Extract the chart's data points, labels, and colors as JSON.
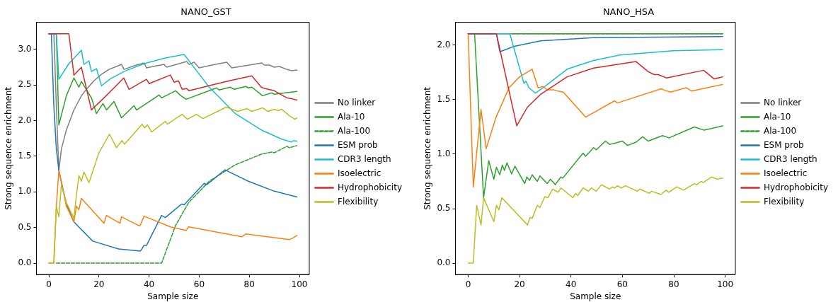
{
  "chart_data": [
    {
      "type": "line",
      "title": "NANO_GST",
      "xlabel": "Sample size",
      "ylabel": "Strong sequence enrichment",
      "xlim": [
        -4.95,
        103.95
      ],
      "xticks": [
        0,
        20,
        40,
        60,
        80,
        100
      ],
      "ylim": [
        -0.16,
        3.38
      ],
      "yticks": [
        {
          "value": 0,
          "label": "0.0"
        },
        {
          "value": 0.5,
          "label": "0.5"
        },
        {
          "value": 1,
          "label": "1.0"
        },
        {
          "value": 1.5,
          "label": "1.5"
        },
        {
          "value": 2,
          "label": "2.0"
        },
        {
          "value": 2.5,
          "label": "2.5"
        },
        {
          "value": 3,
          "label": "3.0"
        }
      ],
      "grid": false,
      "legend": "right",
      "marker": "none",
      "series": [
        {
          "name": "No linker",
          "color": "#7f7f7f",
          "x": [
            0,
            2,
            3,
            4,
            5,
            7,
            10,
            13,
            15,
            18,
            21,
            24,
            27,
            29,
            30,
            34,
            38,
            39,
            43,
            46,
            47,
            52,
            55,
            56,
            58,
            60,
            65,
            71,
            73,
            80,
            85,
            86,
            88,
            90,
            92,
            95,
            97,
            99
          ],
          "values": [
            3.22,
            3.22,
            2.2,
            1.3,
            1.6,
            1.87,
            2.15,
            2.35,
            2.44,
            2.56,
            2.65,
            2.72,
            2.76,
            2.79,
            2.72,
            2.77,
            2.81,
            2.74,
            2.77,
            2.79,
            2.75,
            2.8,
            2.83,
            2.79,
            2.82,
            2.74,
            2.78,
            2.82,
            2.74,
            2.78,
            2.81,
            2.78,
            2.78,
            2.75,
            2.76,
            2.72,
            2.7,
            2.71
          ]
        },
        {
          "name": "Ala-10",
          "color": "#2ca02c",
          "x": [
            0,
            3,
            4,
            7,
            10,
            12,
            13,
            17,
            19,
            21.6,
            23,
            26,
            29,
            34,
            35,
            44,
            45,
            50.6,
            52.7,
            54.8,
            67,
            68,
            72.4,
            74,
            78.6,
            79.6,
            81,
            85.3,
            89,
            90,
            99
          ],
          "values": [
            3.22,
            3.22,
            1.94,
            2.35,
            2.6,
            2.47,
            2.55,
            2.32,
            2.1,
            2.24,
            2.15,
            2.27,
            2.04,
            2.21,
            2.15,
            2.36,
            2.32,
            2.42,
            2.35,
            2.3,
            2.46,
            2.43,
            2.47,
            2.44,
            2.48,
            2.46,
            2.47,
            2.35,
            2.39,
            2.37,
            2.41
          ]
        },
        {
          "name": "Ala-100",
          "color": "#2ca02c",
          "line_style": "dashed",
          "x": [
            3,
            45,
            50.6,
            55.8,
            64,
            74.4,
            84.8,
            89,
            90,
            95,
            96,
            99
          ],
          "values": [
            0,
            0,
            0.53,
            0.85,
            1.15,
            1.38,
            1.53,
            1.56,
            1.55,
            1.64,
            1.62,
            1.65
          ]
        },
        {
          "name": "ESM prob",
          "color": "#1f77b4",
          "x": [
            0,
            1,
            2,
            3,
            4,
            7,
            10,
            17.5,
            27.8,
            36.6,
            38,
            39,
            44,
            45,
            46.5,
            53,
            54,
            62,
            63,
            70.3,
            79.6,
            90,
            99
          ],
          "values": [
            3.22,
            3.22,
            2.2,
            1.6,
            1.3,
            0.83,
            0.58,
            0.31,
            0.2,
            0.17,
            0.25,
            0.25,
            0.6,
            0.67,
            0.64,
            0.83,
            0.82,
            1.12,
            1.1,
            1.31,
            1.15,
            1.01,
            0.93
          ]
        },
        {
          "name": "CDR3 length",
          "color": "#17becf",
          "x": [
            0,
            3,
            4,
            8,
            13,
            14,
            16,
            17,
            19,
            21,
            24.7,
            30,
            38,
            46.5,
            54,
            59,
            64,
            74.4,
            84.8,
            93,
            96.7,
            97.7,
            99
          ],
          "values": [
            3.22,
            3.22,
            2.58,
            2.8,
            2.99,
            2.79,
            2.84,
            2.69,
            2.73,
            2.49,
            2.59,
            2.69,
            2.8,
            2.88,
            2.93,
            2.7,
            2.47,
            2.1,
            1.87,
            1.74,
            1.7,
            1.72,
            1.71
          ]
        },
        {
          "name": "Isoelectric",
          "color": "#ff7f0e",
          "x": [
            0,
            2,
            3,
            4,
            7,
            10,
            11,
            12,
            13,
            22,
            23,
            28.4,
            29,
            36.3,
            38,
            48.5,
            54.8,
            55.8,
            77,
            78.6,
            96,
            97.7,
            99
          ],
          "values": [
            0,
            0,
            0.81,
            1.3,
            0.8,
            0.58,
            0.8,
            0.75,
            0.91,
            0.56,
            0.67,
            0.56,
            0.65,
            0.52,
            0.66,
            0.51,
            0.46,
            0.51,
            0.37,
            0.41,
            0.33,
            0.36,
            0.39
          ]
        },
        {
          "name": "Hydrophobicity",
          "color": "#d62728",
          "x": [
            0,
            8,
            10,
            13,
            17,
            22,
            26,
            29.9,
            32,
            39,
            40,
            48.5,
            50,
            51.7,
            53.2,
            55,
            56,
            65,
            72,
            81,
            84.8,
            86.3,
            90,
            95,
            96.7,
            99
          ],
          "values": [
            3.22,
            3.22,
            2.64,
            2.75,
            2.15,
            2.32,
            2.46,
            2.6,
            2.44,
            2.58,
            2.52,
            2.64,
            2.54,
            2.56,
            2.44,
            2.45,
            2.42,
            2.5,
            2.56,
            2.63,
            2.47,
            2.45,
            2.42,
            2.32,
            2.31,
            2.29
          ]
        },
        {
          "name": "Flexibility",
          "color": "#bcbd22",
          "x": [
            0,
            2,
            3,
            4,
            5,
            7,
            10,
            11,
            12,
            13,
            14,
            16,
            20,
            24.2,
            27,
            29.2,
            30.2,
            33,
            37.2,
            38.2,
            39.4,
            41,
            46.5,
            47.3,
            53.2,
            55.3,
            58.9,
            61.5,
            70.8,
            75.5,
            79,
            81,
            85.3,
            87.4,
            90,
            91.5,
            93,
            96,
            98.2,
            99
          ],
          "values": [
            0,
            0,
            0.8,
            0.65,
            1.1,
            0.85,
            0.63,
            0.95,
            1.23,
            1.15,
            1.28,
            1.13,
            1.55,
            1.81,
            1.62,
            1.72,
            1.67,
            1.78,
            1.95,
            1.9,
            1.94,
            1.84,
            1.99,
            1.95,
            2.09,
            2.02,
            2.09,
            2.03,
            2.19,
            2.13,
            2.17,
            2.13,
            2.18,
            2.13,
            2.16,
            2.14,
            2.16,
            2.07,
            2.02,
            2.04
          ]
        }
      ]
    },
    {
      "type": "line",
      "title": "NANO_HSA",
      "xlabel": "Sample size",
      "ylabel": "Strong sequence enrichment",
      "xlim": [
        -4.95,
        103.95
      ],
      "xticks": [
        0,
        20,
        40,
        60,
        80,
        100
      ],
      "ylim": [
        -0.105,
        2.21
      ],
      "yticks": [
        {
          "value": 0,
          "label": "0.0"
        },
        {
          "value": 0.5,
          "label": "0.5"
        },
        {
          "value": 1,
          "label": "1.0"
        },
        {
          "value": 1.5,
          "label": "1.5"
        },
        {
          "value": 2,
          "label": "2.0"
        }
      ],
      "grid": false,
      "legend": "right",
      "marker": "none",
      "series": [
        {
          "name": "No linker",
          "color": "#7f7f7f",
          "x": [
            0,
            99
          ],
          "values": [
            2.105,
            2.105
          ]
        },
        {
          "name": "Ala-10",
          "color": "#2ca02c",
          "x": [
            0,
            2.5,
            6,
            8,
            10,
            11,
            12.3,
            13.3,
            14.1,
            15.1,
            16.9,
            18.2,
            22,
            22.8,
            23.9,
            24.9,
            26.9,
            27.9,
            30.8,
            32,
            33.9,
            36,
            36.8,
            44.7,
            45.7,
            48.8,
            49.9,
            53.4,
            55,
            57,
            60,
            62,
            65.3,
            67.9,
            70,
            75.6,
            78.2,
            88,
            91.8,
            99
          ],
          "values": [
            2.105,
            2.105,
            0.6,
            0.94,
            0.77,
            0.88,
            0.81,
            0.9,
            0.85,
            0.92,
            0.82,
            0.89,
            0.73,
            0.79,
            0.76,
            0.81,
            0.75,
            0.8,
            0.73,
            0.77,
            0.72,
            0.79,
            0.78,
            1.01,
            0.98,
            1.06,
            1.04,
            1.12,
            1.09,
            1.1,
            1.12,
            1.08,
            1.11,
            1.16,
            1.12,
            1.17,
            1.15,
            1.25,
            1.22,
            1.26
          ]
        },
        {
          "name": "Ala-100",
          "color": "#2ca02c",
          "line_style": "dashed",
          "x": [
            17,
            99
          ],
          "values": [
            2.105,
            2.105
          ]
        },
        {
          "name": "ESM prob",
          "color": "#1f77b4",
          "x": [
            0,
            11,
            12.3,
            17.9,
            28.2,
            48.8,
            99
          ],
          "values": [
            2.105,
            2.105,
            1.94,
            1.99,
            2.04,
            2.07,
            2.08
          ]
        },
        {
          "name": "CDR3 length",
          "color": "#17becf",
          "x": [
            0,
            16.2,
            21.7,
            22.5,
            23.6,
            26.2,
            30.3,
            38.5,
            48.8,
            59.1,
            69.4,
            79.7,
            99
          ],
          "values": [
            2.105,
            2.105,
            1.65,
            1.67,
            1.61,
            1.56,
            1.63,
            1.78,
            1.86,
            1.91,
            1.93,
            1.95,
            1.96
          ]
        },
        {
          "name": "Isoelectric",
          "color": "#ff7f0e",
          "x": [
            0,
            2,
            5,
            7,
            10.7,
            15.9,
            20,
            24.9,
            27.2,
            29.2,
            30.8,
            33.4,
            34.9,
            37,
            45.7,
            57,
            58,
            75.1,
            76.1,
            78.7,
            84.9,
            86.9,
            99
          ],
          "values": [
            2.105,
            0.7,
            1.41,
            1.05,
            1.33,
            1.61,
            1.71,
            1.78,
            1.61,
            1.62,
            1.59,
            1.59,
            1.58,
            1.57,
            1.34,
            1.49,
            1.47,
            1.6,
            1.59,
            1.57,
            1.61,
            1.58,
            1.64
          ]
        },
        {
          "name": "Hydrophobicity",
          "color": "#d62728",
          "x": [
            0,
            11,
            18.9,
            23,
            28.2,
            38.5,
            48.8,
            65.3,
            69.9,
            71.5,
            72.5,
            74,
            77.1,
            91.6,
            95.7,
            99
          ],
          "values": [
            2.105,
            2.105,
            1.26,
            1.43,
            1.55,
            1.71,
            1.79,
            1.85,
            1.76,
            1.74,
            1.73,
            1.73,
            1.7,
            1.77,
            1.69,
            1.71
          ]
        },
        {
          "name": "Flexibility",
          "color": "#bcbd22",
          "x": [
            0,
            2,
            3.3,
            5,
            6,
            10,
            11,
            12,
            13.1,
            23.1,
            24.1,
            24.9,
            26.9,
            27.9,
            29.8,
            31,
            32.9,
            35,
            36.1,
            40.8,
            41.8,
            42.6,
            44.7,
            46.8,
            48,
            49.8,
            51.9,
            55,
            56,
            57,
            58.1,
            59.6,
            61.2,
            65.8,
            66.8,
            70.4,
            71.4,
            75,
            77,
            78,
            81.2,
            83.8,
            88,
            89,
            90.5,
            91.5,
            94.6,
            97.2,
            98.2,
            99
          ],
          "values": [
            0,
            0,
            0.53,
            0.35,
            0.6,
            0.38,
            0.53,
            0.49,
            0.6,
            0.35,
            0.42,
            0.41,
            0.53,
            0.51,
            0.61,
            0.6,
            0.68,
            0.65,
            0.69,
            0.6,
            0.64,
            0.62,
            0.69,
            0.66,
            0.69,
            0.66,
            0.72,
            0.68,
            0.7,
            0.69,
            0.71,
            0.69,
            0.71,
            0.66,
            0.68,
            0.64,
            0.66,
            0.63,
            0.67,
            0.65,
            0.7,
            0.67,
            0.73,
            0.72,
            0.75,
            0.74,
            0.79,
            0.77,
            0.78,
            0.78
          ]
        }
      ]
    }
  ]
}
